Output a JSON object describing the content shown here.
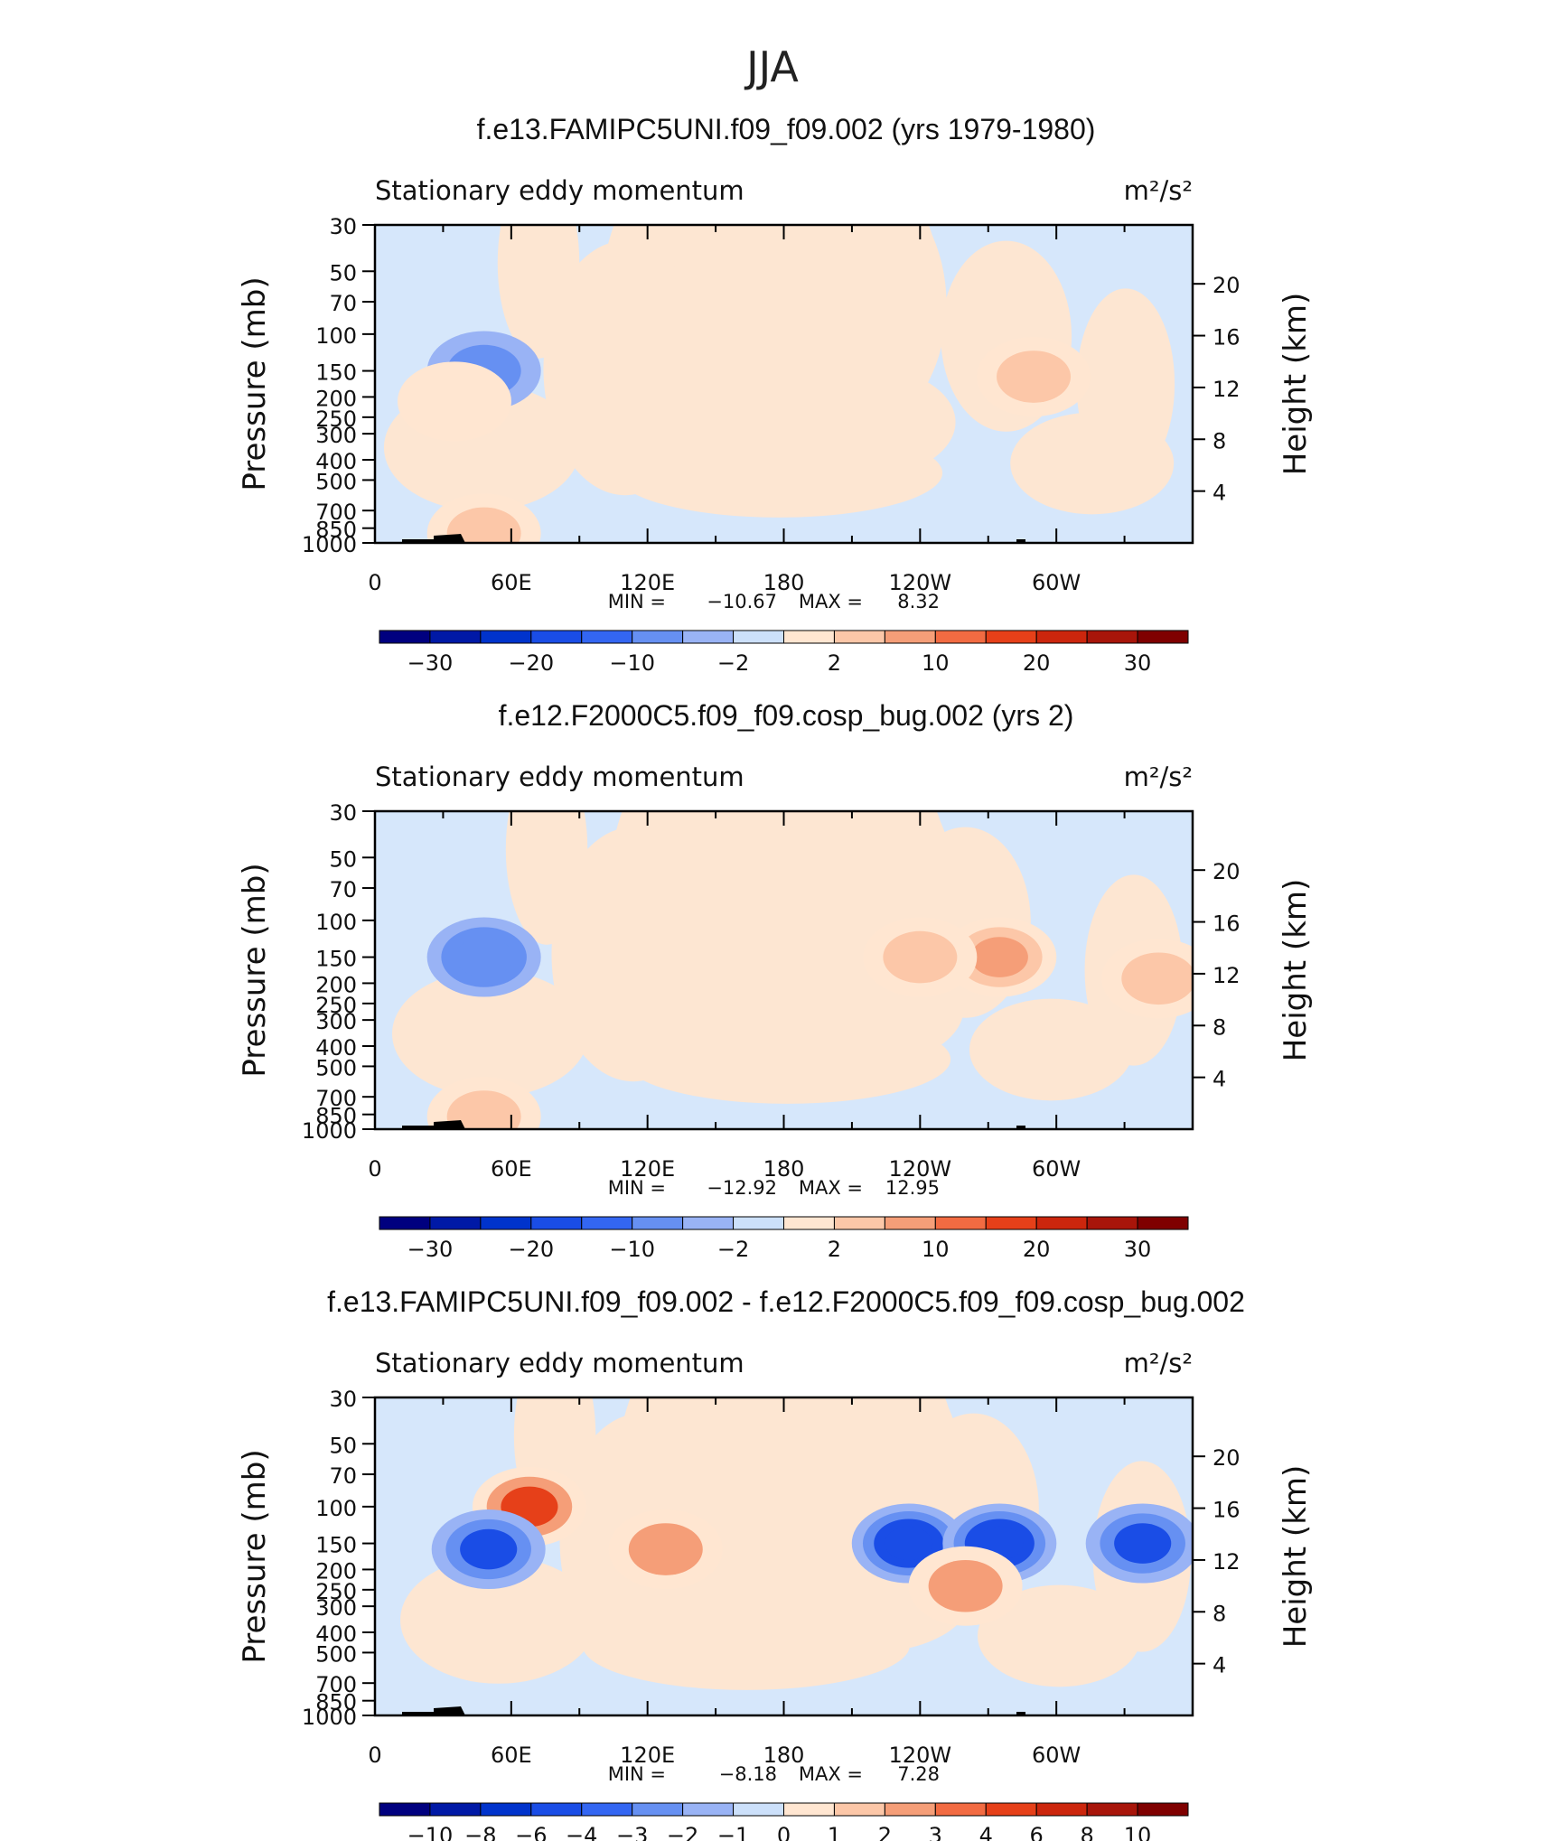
{
  "figure": {
    "title": "JJA"
  },
  "common": {
    "left_string": "Stationary eddy momentum",
    "units": "m²/s²",
    "ylabel_left": "Pressure (mb)",
    "ylabel_right": "Height (km)",
    "pressure_ticks": [
      "30",
      "50",
      "70",
      "100",
      "150",
      "200",
      "250",
      "300",
      "400",
      "500",
      "700",
      "850",
      "1000"
    ],
    "height_ticks": [
      "20",
      "16",
      "12",
      "8",
      "4"
    ],
    "lon_ticks": [
      "0",
      "60E",
      "120E",
      "180",
      "120W",
      "60W"
    ],
    "minmax_fmt": {
      "min_label": "MIN =",
      "max_label": "MAX ="
    }
  },
  "colors": {
    "palette": [
      "#00007f",
      "#0019a6",
      "#0033cc",
      "#1a4de6",
      "#3366f2",
      "#6690f2",
      "#99b3f5",
      "#cce0fa",
      "#ffe6d1",
      "#fcc7a8",
      "#f59e78",
      "#f26b42",
      "#e64019",
      "#cc260d",
      "#a8150a",
      "#7f0000"
    ],
    "pos_light": "#fde6d2",
    "neg_light": "#d6e7fb",
    "topo": "#000000"
  },
  "chart_data": [
    {
      "type": "contour",
      "title": "f.e13.FAMIPC5UNI.f09_f09.002 (yrs 1979-1980)",
      "min": "−10.67",
      "max": "8.32",
      "colorbar_labels": [
        "−30",
        "−20",
        "−10",
        "−2",
        "2",
        "10",
        "20",
        "30"
      ],
      "features": [
        {
          "lon": 48,
          "p": 150,
          "value": -7,
          "kind": "neg"
        },
        {
          "lon": 35,
          "p": 210,
          "value": 4,
          "kind": "pos"
        },
        {
          "lon": 290,
          "p": 160,
          "value": 5,
          "kind": "pos"
        },
        {
          "lon": 48,
          "p": 900,
          "value": 6,
          "kind": "pos"
        }
      ]
    },
    {
      "type": "contour",
      "title": "f.e12.F2000C5.f09_f09.cosp_bug.002 (yrs 2)",
      "min": "−12.92",
      "max": "12.95",
      "colorbar_labels": [
        "−30",
        "−20",
        "−10",
        "−2",
        "2",
        "10",
        "20",
        "30"
      ],
      "features": [
        {
          "lon": 48,
          "p": 150,
          "value": -8,
          "kind": "neg"
        },
        {
          "lon": 275,
          "p": 150,
          "value": 10,
          "kind": "pos"
        },
        {
          "lon": 240,
          "p": 150,
          "value": 5,
          "kind": "pos"
        },
        {
          "lon": 345,
          "p": 190,
          "value": 5,
          "kind": "pos"
        },
        {
          "lon": 48,
          "p": 870,
          "value": 6,
          "kind": "pos"
        }
      ]
    },
    {
      "type": "contour",
      "title": "f.e13.FAMIPC5UNI.f09_f09.002 - f.e12.F2000C5.f09_f09.cosp_bug.002",
      "min": "−8.18",
      "max": "7.28",
      "colorbar_labels": [
        "−10",
        "−8",
        "−6",
        "−4",
        "−3",
        "−2",
        "−1",
        "0",
        "1",
        "2",
        "3",
        "4",
        "6",
        "8",
        "10"
      ],
      "features": [
        {
          "lon": 235,
          "p": 150,
          "value": -8,
          "kind": "neg"
        },
        {
          "lon": 275,
          "p": 150,
          "value": -7,
          "kind": "neg"
        },
        {
          "lon": 338,
          "p": 150,
          "value": -6,
          "kind": "neg"
        },
        {
          "lon": 68,
          "p": 100,
          "value": 5,
          "kind": "pos"
        },
        {
          "lon": 128,
          "p": 160,
          "value": 4,
          "kind": "pos"
        },
        {
          "lon": 50,
          "p": 160,
          "value": -5,
          "kind": "neg"
        },
        {
          "lon": 260,
          "p": 240,
          "value": 3,
          "kind": "pos"
        }
      ]
    }
  ]
}
